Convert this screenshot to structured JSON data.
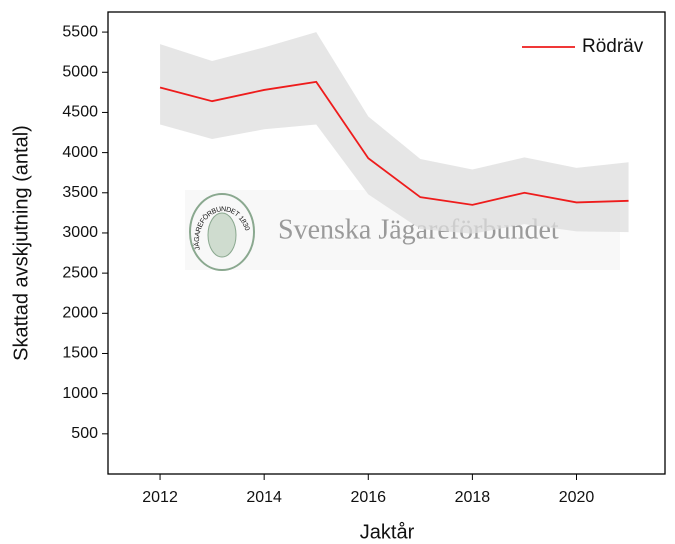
{
  "chart_data": {
    "type": "line",
    "x_label": "Jaktår",
    "y_label": "Skattad avskjutning (antal)",
    "x": [
      2012,
      2013,
      2014,
      2015,
      2016,
      2017,
      2018,
      2019,
      2020,
      2021
    ],
    "series": [
      {
        "name": "Rödräv",
        "color": "#ee1c1c",
        "band_color": "#dedede",
        "values": [
          4810,
          4640,
          4780,
          4880,
          3930,
          3445,
          3350,
          3500,
          3380,
          3400
        ],
        "upper": [
          5350,
          5140,
          5310,
          5500,
          4450,
          3920,
          3790,
          3940,
          3810,
          3880
        ],
        "lower": [
          4350,
          4170,
          4290,
          4350,
          3480,
          3050,
          2990,
          3110,
          3020,
          3010
        ]
      }
    ],
    "xlim": [
      2011,
      2021.7
    ],
    "ylim": [
      0,
      5750
    ],
    "xticks": [
      2012,
      2014,
      2016,
      2018,
      2020
    ],
    "yticks": [
      500,
      1000,
      1500,
      2000,
      2500,
      3000,
      3500,
      4000,
      4500,
      5000,
      5500
    ],
    "legend": "upper right",
    "watermark": "Svenska Jägareförbundet",
    "logo_text": "JÄGAREFÖRBUNDET 1830"
  }
}
